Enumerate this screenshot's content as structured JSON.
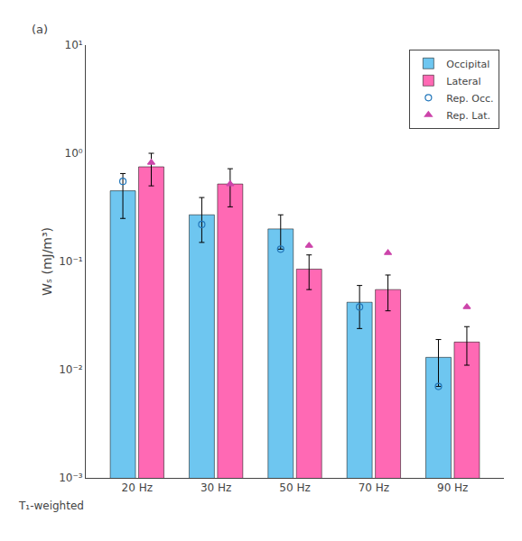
{
  "chart_data": {
    "type": "bar",
    "categories": [
      "20 Hz",
      "30 Hz",
      "50 Hz",
      "70 Hz",
      "90 Hz"
    ],
    "ylabel": "Wₛ (mJ/m³)",
    "log": "y",
    "ylim": [
      0.001,
      10
    ],
    "yticks": [
      {
        "value": 0.001,
        "label": "10⁻³"
      },
      {
        "value": 0.01,
        "label": "10⁻²"
      },
      {
        "value": 0.1,
        "label": "10⁻¹"
      },
      {
        "value": 1,
        "label": "10⁰"
      },
      {
        "value": 10,
        "label": "10¹"
      }
    ],
    "grid": false,
    "legend": "upper right",
    "annotations": [
      "(a)",
      "T₁-weighted"
    ],
    "series": [
      {
        "name": "Occipital",
        "type": "bar",
        "color": "#6EC6F0",
        "values": [
          0.45,
          0.27,
          0.2,
          0.042,
          0.013
        ],
        "error_low": [
          0.2,
          0.12,
          0.07,
          0.018,
          0.006
        ],
        "error_high": [
          0.2,
          0.12,
          0.07,
          0.018,
          0.006
        ]
      },
      {
        "name": "Lateral",
        "type": "bar",
        "color": "#FF69B4",
        "values": [
          0.75,
          0.52,
          0.085,
          0.055,
          0.018
        ],
        "error_low": [
          0.25,
          0.2,
          0.03,
          0.02,
          0.007
        ],
        "error_high": [
          0.25,
          0.2,
          0.03,
          0.02,
          0.007
        ]
      },
      {
        "name": "Rep. Occ.",
        "type": "scatter",
        "color": "#2277BB",
        "marker": "circle-open",
        "values": [
          0.55,
          0.22,
          0.13,
          0.038,
          0.007
        ]
      },
      {
        "name": "Rep. Lat.",
        "type": "scatter",
        "color": "#CC44AA",
        "marker": "triangle-up",
        "values": [
          0.82,
          0.52,
          0.14,
          0.12,
          0.038
        ]
      }
    ]
  }
}
